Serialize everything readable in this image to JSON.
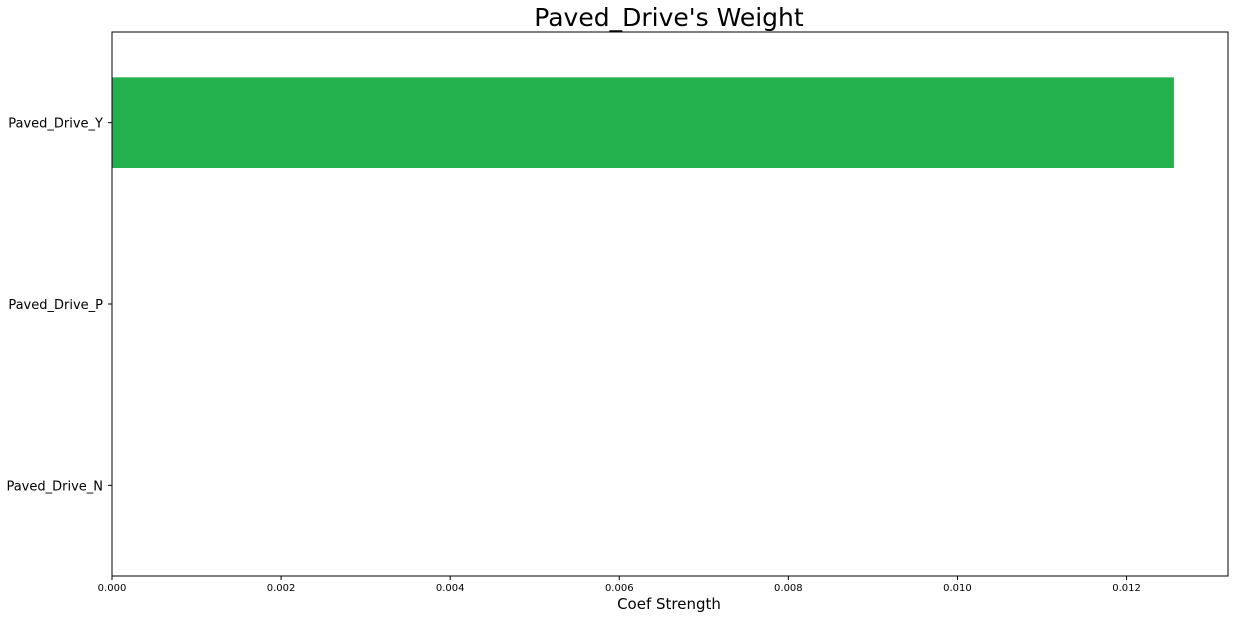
{
  "chart_data": {
    "type": "bar",
    "orientation": "horizontal",
    "title": "Paved_Drive's Weight",
    "xlabel": "Coef Strength",
    "ylabel": "",
    "categories": [
      "Paved_Drive_Y",
      "Paved_Drive_P",
      "Paved_Drive_N"
    ],
    "values": [
      0.01256,
      0.0,
      0.0
    ],
    "xlim": [
      0,
      0.0132
    ],
    "xticks": [
      0.0,
      0.002,
      0.004,
      0.006,
      0.008,
      0.01,
      0.012
    ],
    "xtick_labels": [
      "0.000",
      "0.002",
      "0.004",
      "0.006",
      "0.008",
      "0.010",
      "0.012"
    ],
    "bar_color": "#23b14d",
    "grid": false,
    "legend": "none"
  }
}
